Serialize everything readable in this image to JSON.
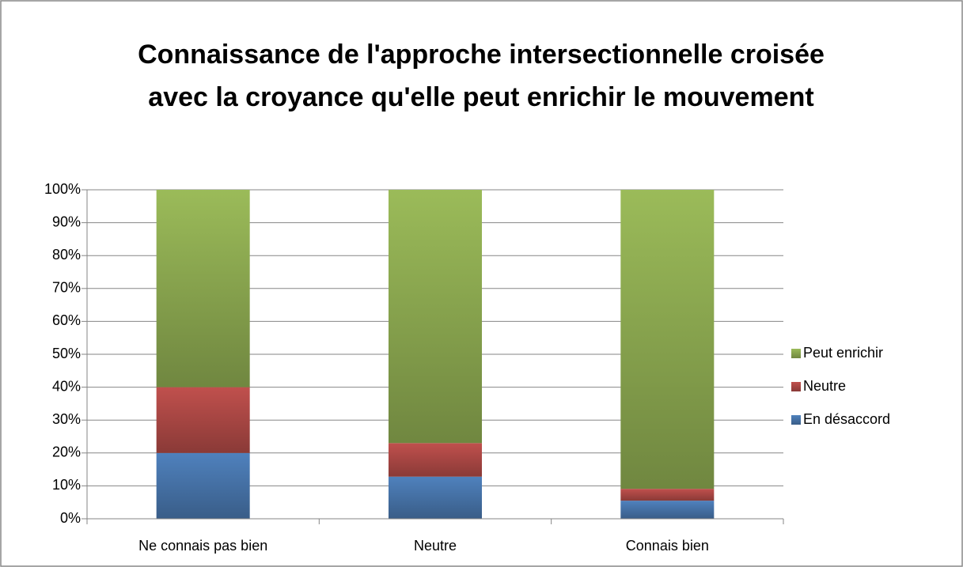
{
  "chart_data": {
    "type": "stacked_bar_100",
    "title": "Connaissance de l'approche intersectionnelle croisée avec la croyance qu'elle peut enrichir le mouvement",
    "categories": [
      "Ne connais pas bien",
      "Neutre",
      "Connais bien"
    ],
    "series": [
      {
        "name": "En désaccord",
        "color": "#4f81bd",
        "values": [
          20,
          12.8,
          5.5
        ]
      },
      {
        "name": "Neutre",
        "color": "#c0504d",
        "values": [
          20,
          10.2,
          3.6
        ]
      },
      {
        "name": "Peut enrichir",
        "color": "#9bbb59",
        "values": [
          60,
          77.0,
          90.9
        ]
      }
    ],
    "ylim": [
      0,
      100
    ],
    "yticks": [
      {
        "value": 0,
        "label": "0%"
      },
      {
        "value": 10,
        "label": "10%"
      },
      {
        "value": 20,
        "label": "20%"
      },
      {
        "value": 30,
        "label": "30%"
      },
      {
        "value": 40,
        "label": "40%"
      },
      {
        "value": 50,
        "label": "50%"
      },
      {
        "value": 60,
        "label": "60%"
      },
      {
        "value": 70,
        "label": "70%"
      },
      {
        "value": 80,
        "label": "80%"
      },
      {
        "value": 90,
        "label": "90%"
      },
      {
        "value": 100,
        "label": "100%"
      }
    ],
    "grid": true,
    "legend": "right"
  }
}
